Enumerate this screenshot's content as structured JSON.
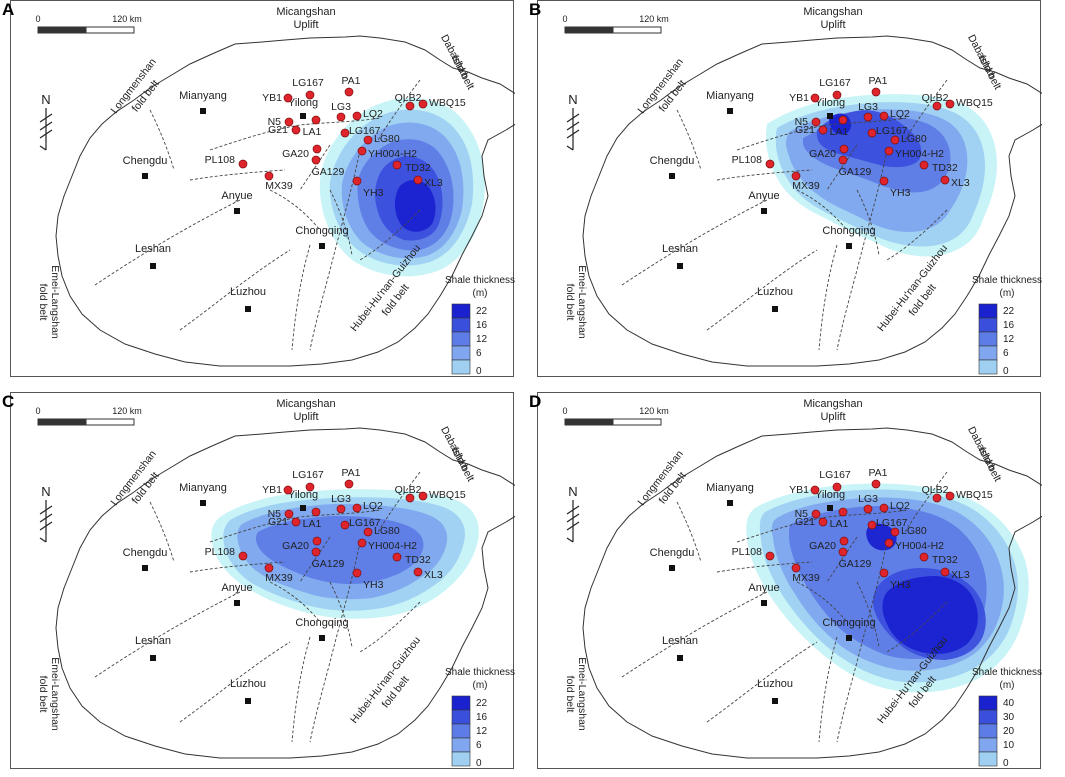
{
  "colors": {
    "border": "#555555",
    "outline": "#333333",
    "fault": "#444444",
    "well_fill": "#e0242b",
    "well_stroke": "#7a1010",
    "city": "#111111",
    "shale_levels": [
      "#c6f3f7",
      "#9fd0f2",
      "#7fa6ee",
      "#5d7ce6",
      "#3a4fdc",
      "#1a22d0"
    ]
  },
  "scale_bar": {
    "start_label": "0",
    "end_label": "120 km"
  },
  "north_label": "N",
  "structures": {
    "micangshan_line1": "Micangshan",
    "micangshan_line2": "Uplift",
    "dabashan_line1": "Dabashan",
    "dabashan_line2": "fold belt",
    "longmenshan_line1": "Longmenshan",
    "longmenshan_line2": "fold belt",
    "emei_line1": "Emei-Langshan",
    "emei_line2": "fold belt",
    "hubei_line1": "Hubei-Hu'nan-Guizhou",
    "hubei_line2": "fold belt"
  },
  "cities": [
    "Mianyang",
    "Yilong",
    "Chengdu",
    "Anyue",
    "Chongqing",
    "Leshan",
    "Luzhou"
  ],
  "wells": [
    "YB1",
    "LG167",
    "PA1",
    "N5",
    "LG3",
    "LQ2",
    "QLB2",
    "WBQ15",
    "G21",
    "LA1",
    "LG167",
    "LG80",
    "GA20",
    "YH004-H2",
    "PL108",
    "GA129",
    "TD32",
    "XL3",
    "MX39",
    "YH3"
  ],
  "legend": {
    "title_line1": "Shale thickness",
    "title_line2": "(m)"
  },
  "panels": [
    {
      "label": "A",
      "legend_values": [
        "22",
        "16",
        "12",
        "6",
        "0"
      ]
    },
    {
      "label": "B",
      "legend_values": [
        "22",
        "16",
        "12",
        "6",
        "0"
      ]
    },
    {
      "label": "C",
      "legend_values": [
        "22",
        "16",
        "12",
        "6",
        "0"
      ]
    },
    {
      "label": "D",
      "legend_values": [
        "40",
        "30",
        "20",
        "10",
        "0"
      ]
    }
  ]
}
